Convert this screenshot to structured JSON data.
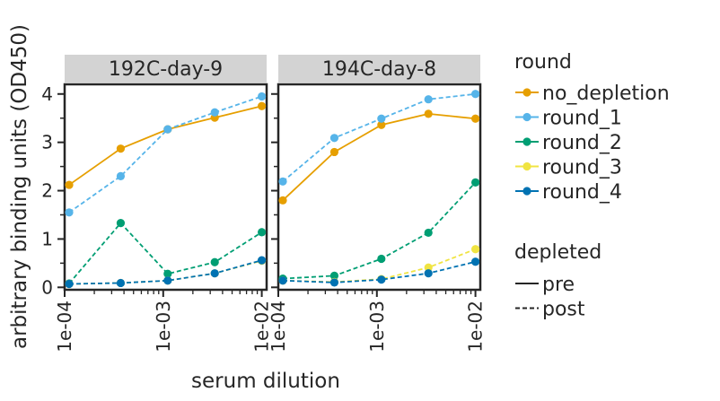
{
  "chart_data": {
    "type": "line",
    "ylabel": "arbitrary binding units (OD450)",
    "xlabel": "serum dilution",
    "x_scale": "log",
    "xlim": [
      0.0001,
      0.0112
    ],
    "ylim": [
      -0.05,
      4.2
    ],
    "x_ticks": [
      {
        "value": 0.0001,
        "label": "1e-04"
      },
      {
        "value": 0.001,
        "label": "1e-03"
      },
      {
        "value": 0.01,
        "label": "1e-02"
      }
    ],
    "y_ticks": [
      {
        "value": 0,
        "label": "0"
      },
      {
        "value": 1,
        "label": "1"
      },
      {
        "value": 2,
        "label": "2"
      },
      {
        "value": 3,
        "label": "3"
      },
      {
        "value": 4,
        "label": "4"
      }
    ],
    "x": [
      0.0001111,
      0.0003704,
      0.001111,
      0.003333,
      0.01
    ],
    "legend": {
      "round_title": "round",
      "rounds": [
        {
          "name": "no_depletion",
          "color": "#e69f00",
          "style": "solid"
        },
        {
          "name": "round_1",
          "color": "#56b4e9",
          "style": "dashed"
        },
        {
          "name": "round_2",
          "color": "#009e73",
          "style": "dashed"
        },
        {
          "name": "round_3",
          "color": "#f0e442",
          "style": "dashed"
        },
        {
          "name": "round_4",
          "color": "#0072b2",
          "style": "dashed"
        }
      ],
      "depleted_title": "depleted",
      "depleted": [
        {
          "name": "pre",
          "style": "solid"
        },
        {
          "name": "post",
          "style": "dashed"
        }
      ]
    },
    "panels": [
      {
        "title": "192C-day-9",
        "series": [
          {
            "name": "no_depletion",
            "values": [
              2.12,
              2.87,
              3.27,
              3.51,
              3.75
            ]
          },
          {
            "name": "round_1",
            "values": [
              1.55,
              2.3,
              3.27,
              3.62,
              3.95
            ]
          },
          {
            "name": "round_2",
            "values": [
              0.08,
              1.33,
              0.28,
              0.52,
              1.14
            ]
          },
          {
            "name": "round_3",
            "values": [
              0.07,
              0.09,
              0.14,
              0.29,
              0.55
            ]
          },
          {
            "name": "round_4",
            "values": [
              0.07,
              0.09,
              0.14,
              0.29,
              0.56
            ]
          }
        ]
      },
      {
        "title": "194C-day-8",
        "series": [
          {
            "name": "no_depletion",
            "values": [
              1.8,
              2.8,
              3.36,
              3.59,
              3.49
            ]
          },
          {
            "name": "round_1",
            "values": [
              2.19,
              3.09,
              3.49,
              3.89,
              4.0
            ]
          },
          {
            "name": "round_2",
            "values": [
              0.18,
              0.24,
              0.59,
              1.13,
              2.17
            ]
          },
          {
            "name": "round_3",
            "values": [
              0.14,
              0.11,
              0.17,
              0.41,
              0.79
            ]
          },
          {
            "name": "round_4",
            "values": [
              0.14,
              0.1,
              0.16,
              0.29,
              0.53
            ]
          }
        ]
      }
    ]
  }
}
